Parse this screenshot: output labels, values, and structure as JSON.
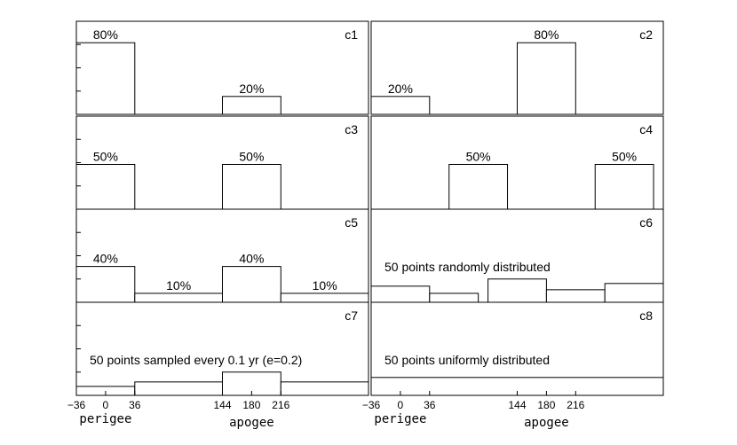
{
  "chart_data": {
    "type": "bar",
    "x_ticks": [
      -36,
      0,
      36,
      144,
      180,
      216
    ],
    "x_tick_labels": [
      "−36",
      "0",
      "36",
      "144",
      "180",
      "216"
    ],
    "xlim": [
      -36,
      324
    ],
    "ylim": [
      0,
      1.0
    ],
    "bin_edges": [
      -36,
      36,
      144,
      216,
      324
    ],
    "axis_words": {
      "perigee": "perigee",
      "apogee": "apogee"
    },
    "panels": [
      {
        "id": "c1",
        "label": "c1",
        "note": "",
        "bars": [
          {
            "x0": -36,
            "x1": 36,
            "value": 0.8,
            "label": "80%"
          },
          {
            "x0": 144,
            "x1": 216,
            "value": 0.2,
            "label": "20%"
          }
        ]
      },
      {
        "id": "c2",
        "label": "c2",
        "note": "",
        "bars": [
          {
            "x0": -36,
            "x1": 36,
            "value": 0.2,
            "label": "20%"
          },
          {
            "x0": 144,
            "x1": 216,
            "value": 0.8,
            "label": "80%"
          }
        ]
      },
      {
        "id": "c3",
        "label": "c3",
        "note": "",
        "bars": [
          {
            "x0": -36,
            "x1": 36,
            "value": 0.5,
            "label": "50%"
          },
          {
            "x0": 144,
            "x1": 216,
            "value": 0.5,
            "label": "50%"
          }
        ]
      },
      {
        "id": "c4",
        "label": "c4",
        "note": "",
        "bars": [
          {
            "x0": 60,
            "x1": 132,
            "value": 0.5,
            "label": "50%"
          },
          {
            "x0": 240,
            "x1": 312,
            "value": 0.5,
            "label": "50%"
          }
        ]
      },
      {
        "id": "c5",
        "label": "c5",
        "note": "",
        "bars": [
          {
            "x0": -36,
            "x1": 36,
            "value": 0.4,
            "label": "40%"
          },
          {
            "x0": 36,
            "x1": 144,
            "value": 0.1,
            "label": "10%"
          },
          {
            "x0": 144,
            "x1": 216,
            "value": 0.4,
            "label": "40%"
          },
          {
            "x0": 216,
            "x1": 324,
            "value": 0.1,
            "label": "10%"
          }
        ]
      },
      {
        "id": "c6",
        "label": "c6",
        "note": "50 points randomly distributed",
        "bars": [
          {
            "x0": -36,
            "x1": 36,
            "value": 0.18,
            "label": ""
          },
          {
            "x0": 36,
            "x1": 96,
            "value": 0.1,
            "label": ""
          },
          {
            "x0": 108,
            "x1": 180,
            "value": 0.26,
            "label": ""
          },
          {
            "x0": 180,
            "x1": 252,
            "value": 0.14,
            "label": ""
          },
          {
            "x0": 252,
            "x1": 324,
            "value": 0.21,
            "label": ""
          }
        ]
      },
      {
        "id": "c7",
        "label": "c7",
        "note": "50 points sampled every 0.1 yr (e=0.2)",
        "bars": [
          {
            "x0": -36,
            "x1": 36,
            "value": 0.1,
            "label": ""
          },
          {
            "x0": 36,
            "x1": 144,
            "value": 0.15,
            "label": ""
          },
          {
            "x0": 144,
            "x1": 216,
            "value": 0.26,
            "label": ""
          },
          {
            "x0": 216,
            "x1": 324,
            "value": 0.15,
            "label": ""
          }
        ]
      },
      {
        "id": "c8",
        "label": "c8",
        "note": "50 points uniformly distributed",
        "bars": [
          {
            "x0": -36,
            "x1": 324,
            "value": 0.2,
            "label": ""
          }
        ]
      }
    ]
  }
}
